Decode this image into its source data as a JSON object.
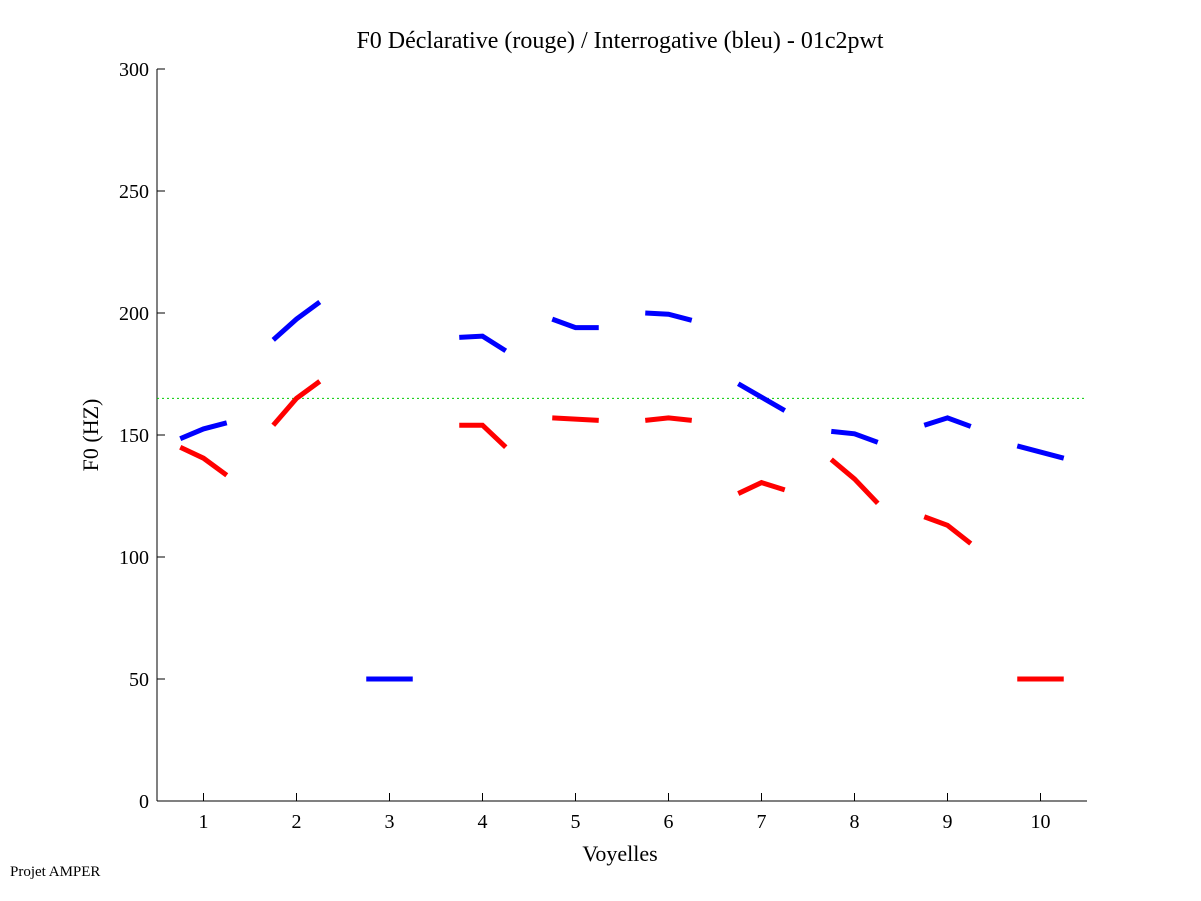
{
  "chart_data": {
    "type": "line",
    "title": "F0 Déclarative (rouge) / Interrogative (bleu) - 01c2pwt",
    "xlabel": "Voyelles",
    "ylabel": "F0 (HZ)",
    "ylim": [
      0,
      300
    ],
    "xlim": [
      0.5,
      10.5
    ],
    "xticks": [
      "1",
      "2",
      "3",
      "4",
      "5",
      "6",
      "7",
      "8",
      "9",
      "10"
    ],
    "yticks": [
      "0",
      "50",
      "100",
      "150",
      "200",
      "250",
      "300"
    ],
    "grid": false,
    "reference_line": {
      "value": 165,
      "color": "#00cc00",
      "style": "dotted"
    },
    "point_offsets": [
      -0.25,
      0,
      0.25
    ],
    "series": [
      {
        "name": "Interrogative (bleu)",
        "color": "#0000ff",
        "segments": [
          {
            "vowel": 1,
            "values": [
              148.5,
              152.5,
              155
            ]
          },
          {
            "vowel": 2,
            "values": [
              189,
              197.5,
              204.5
            ]
          },
          {
            "vowel": 3,
            "values": [
              50,
              50,
              50
            ]
          },
          {
            "vowel": 4,
            "values": [
              190,
              190.5,
              184.5
            ]
          },
          {
            "vowel": 5,
            "values": [
              197.5,
              194,
              194
            ]
          },
          {
            "vowel": 6,
            "values": [
              200,
              199.5,
              197
            ]
          },
          {
            "vowel": 7,
            "values": [
              171,
              165.5,
              160
            ]
          },
          {
            "vowel": 8,
            "values": [
              151.5,
              150.5,
              147
            ]
          },
          {
            "vowel": 9,
            "values": [
              154,
              157,
              153.5
            ]
          },
          {
            "vowel": 10,
            "values": [
              145.5,
              143,
              140.5
            ]
          }
        ]
      },
      {
        "name": "Déclarative (rouge)",
        "color": "#ff0000",
        "segments": [
          {
            "vowel": 1,
            "values": [
              145,
              140.5,
              133.5
            ]
          },
          {
            "vowel": 2,
            "values": [
              154,
              165,
              172
            ]
          },
          {
            "vowel": 4,
            "values": [
              154,
              154,
              145
            ]
          },
          {
            "vowel": 5,
            "values": [
              157,
              156.5,
              156
            ]
          },
          {
            "vowel": 6,
            "values": [
              156,
              157,
              156
            ]
          },
          {
            "vowel": 7,
            "values": [
              126,
              130.5,
              127.5
            ]
          },
          {
            "vowel": 8,
            "values": [
              140,
              132,
              122
            ]
          },
          {
            "vowel": 9,
            "values": [
              116.5,
              113,
              105.5
            ]
          },
          {
            "vowel": 10,
            "values": [
              50,
              50,
              50
            ]
          }
        ]
      }
    ]
  },
  "footer": "Projet AMPER"
}
